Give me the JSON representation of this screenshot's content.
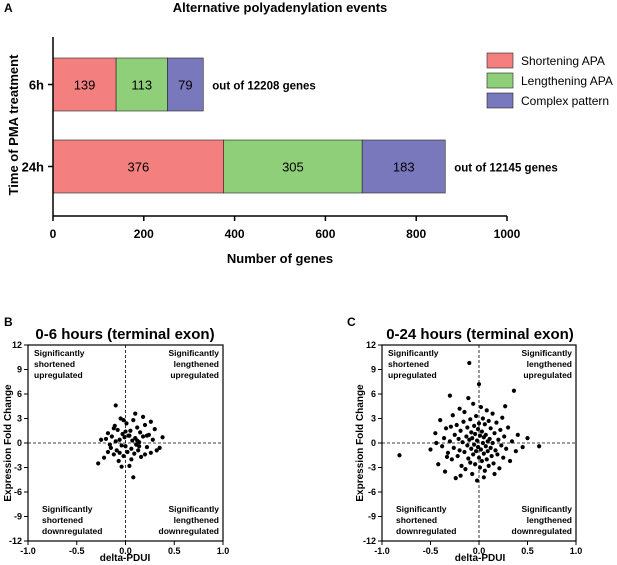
{
  "colors": {
    "shortening": "#f47f7f",
    "lengthening": "#8fcf7a",
    "complex": "#7a78bd",
    "axis": "#000000",
    "dot": "#000000"
  },
  "chart_data": [
    {
      "panel": "A",
      "type": "bar",
      "orientation": "horizontal",
      "stacked": true,
      "title": "Alternative polyadenylation events",
      "xlabel": "Number of genes",
      "ylabel": "Time of PMA treatment",
      "xlim": [
        0,
        1000
      ],
      "xticks": [
        "0",
        "200",
        "400",
        "600",
        "800",
        "1000"
      ],
      "xtick_values": [
        0,
        200,
        400,
        600,
        800,
        1000
      ],
      "categories": [
        "6h",
        "24h"
      ],
      "series": [
        {
          "name": "Shortening APA",
          "color_key": "shortening",
          "values": [
            139,
            376
          ],
          "labels": [
            "139",
            "376"
          ]
        },
        {
          "name": "Lengthening APA",
          "color_key": "lengthening",
          "values": [
            113,
            305
          ],
          "labels": [
            "113",
            "305"
          ]
        },
        {
          "name": "Complex pattern",
          "color_key": "complex",
          "values": [
            79,
            183
          ],
          "labels": [
            "79",
            "183"
          ]
        }
      ],
      "annotations": [
        "out of 12208 genes",
        "out of 12145 genes"
      ],
      "legend": "right"
    },
    {
      "panel": "B",
      "type": "scatter",
      "title": "0-6 hours (terminal exon)",
      "xlabel": "delta-PDUI",
      "ylabel": "Expression Fold Change",
      "xlim": [
        -1.0,
        1.0
      ],
      "ylim": [
        -12,
        12
      ],
      "xticks": [
        "-1.0",
        "-0.5",
        "0.0",
        "0.5",
        "1.0"
      ],
      "xtick_values": [
        -1.0,
        -0.5,
        0.0,
        0.5,
        1.0
      ],
      "yticks": [
        "12",
        "9",
        "6",
        "3",
        "0",
        "-3",
        "-6",
        "-9",
        "-12"
      ],
      "ytick_values": [
        12,
        9,
        6,
        3,
        0,
        -3,
        -6,
        -9,
        -12
      ],
      "quadrant_labels": {
        "top_left": [
          "Significantly",
          "shortened",
          "upregulated"
        ],
        "top_right": [
          "Significantly",
          "lengthened",
          "upregulated"
        ],
        "bottom_left": [
          "Significantly",
          "shortened",
          "downregulated"
        ],
        "bottom_right": [
          "Significantly",
          "lengthened",
          "downregulated"
        ]
      },
      "points": [
        [
          -0.28,
          -2.5
        ],
        [
          -0.22,
          -1.8
        ],
        [
          -0.2,
          0.5
        ],
        [
          -0.18,
          1.2
        ],
        [
          -0.15,
          -0.6
        ],
        [
          -0.14,
          0.8
        ],
        [
          -0.12,
          -1.4
        ],
        [
          -0.11,
          2.1
        ],
        [
          -0.1,
          0.2
        ],
        [
          -0.09,
          -0.9
        ],
        [
          -0.08,
          1.6
        ],
        [
          -0.07,
          -2.2
        ],
        [
          -0.06,
          0.4
        ],
        [
          -0.05,
          3.0
        ],
        [
          -0.04,
          -0.3
        ],
        [
          -0.03,
          1.1
        ],
        [
          -0.02,
          -1.6
        ],
        [
          -0.01,
          0.7
        ],
        [
          0.0,
          -0.4
        ],
        [
          0.01,
          2.4
        ],
        [
          0.02,
          -1.1
        ],
        [
          0.03,
          0.9
        ],
        [
          0.04,
          -2.8
        ],
        [
          0.05,
          1.5
        ],
        [
          0.06,
          -0.7
        ],
        [
          0.07,
          0.3
        ],
        [
          0.08,
          2.8
        ],
        [
          0.09,
          -1.3
        ],
        [
          0.1,
          0.6
        ],
        [
          0.11,
          -0.2
        ],
        [
          0.12,
          1.9
        ],
        [
          0.13,
          -0.9
        ],
        [
          0.14,
          0.1
        ],
        [
          0.15,
          1.3
        ],
        [
          0.16,
          -1.7
        ],
        [
          0.18,
          0.8
        ],
        [
          0.2,
          2.2
        ],
        [
          0.22,
          -0.5
        ],
        [
          0.24,
          1.0
        ],
        [
          0.26,
          -1.2
        ],
        [
          0.28,
          0.4
        ],
        [
          0.3,
          1.7
        ],
        [
          0.35,
          -0.6
        ],
        [
          0.38,
          0.7
        ],
        [
          -0.1,
          4.6
        ],
        [
          0.18,
          3.2
        ],
        [
          0.08,
          -4.2
        ],
        [
          -0.16,
          -0.2
        ],
        [
          0.04,
          0.9
        ],
        [
          -0.06,
          -1.2
        ],
        [
          0.12,
          0.3
        ],
        [
          -0.02,
          2.8
        ],
        [
          0.06,
          -2.0
        ],
        [
          0.2,
          -1.4
        ],
        [
          -0.12,
          1.8
        ],
        [
          0.26,
          2.6
        ],
        [
          -0.25,
          0.4
        ],
        [
          0.32,
          -0.9
        ],
        [
          -0.04,
          -2.9
        ],
        [
          0.1,
          3.6
        ],
        [
          0.0,
          1.4
        ],
        [
          0.14,
          -0.4
        ],
        [
          -0.18,
          -1.1
        ],
        [
          0.22,
          0.9
        ]
      ]
    },
    {
      "panel": "C",
      "type": "scatter",
      "title": "0-24 hours (terminal exon)",
      "xlabel": "delta-PDUI",
      "ylabel": "Expression Fold Change",
      "xlim": [
        -1.0,
        1.0
      ],
      "ylim": [
        -12,
        12
      ],
      "xticks": [
        "-1.0",
        "-0.5",
        "0.0",
        "0.5",
        "1.0"
      ],
      "xtick_values": [
        -1.0,
        -0.5,
        0.0,
        0.5,
        1.0
      ],
      "yticks": [
        "12",
        "9",
        "6",
        "3",
        "0",
        "-3",
        "-6",
        "-9",
        "-12"
      ],
      "ytick_values": [
        12,
        9,
        6,
        3,
        0,
        -3,
        -6,
        -9,
        -12
      ],
      "quadrant_labels": {
        "top_left": [
          "Significantly",
          "shortened",
          "upregulated"
        ],
        "top_right": [
          "Significantly",
          "lengthened",
          "upregulated"
        ],
        "bottom_left": [
          "Significantly",
          "shortened",
          "downregulated"
        ],
        "bottom_right": [
          "Significantly",
          "lengthened",
          "downregulated"
        ]
      },
      "points": [
        [
          -0.82,
          -1.5
        ],
        [
          -0.5,
          -0.8
        ],
        [
          -0.45,
          1.2
        ],
        [
          -0.42,
          -2.6
        ],
        [
          -0.4,
          2.8
        ],
        [
          -0.38,
          -0.4
        ],
        [
          -0.36,
          0.6
        ],
        [
          -0.35,
          -3.5
        ],
        [
          -0.34,
          1.8
        ],
        [
          -0.32,
          -1.2
        ],
        [
          -0.3,
          5.8
        ],
        [
          -0.3,
          0.2
        ],
        [
          -0.28,
          -2.0
        ],
        [
          -0.27,
          3.4
        ],
        [
          -0.26,
          -0.6
        ],
        [
          -0.25,
          1.0
        ],
        [
          -0.24,
          -4.3
        ],
        [
          -0.23,
          2.2
        ],
        [
          -0.22,
          -1.6
        ],
        [
          -0.21,
          0.5
        ],
        [
          -0.2,
          4.2
        ],
        [
          -0.2,
          -0.9
        ],
        [
          -0.19,
          1.5
        ],
        [
          -0.18,
          -2.8
        ],
        [
          -0.17,
          0.1
        ],
        [
          -0.16,
          2.6
        ],
        [
          -0.15,
          -1.1
        ],
        [
          -0.15,
          3.8
        ],
        [
          -0.14,
          -3.2
        ],
        [
          -0.13,
          0.8
        ],
        [
          -0.12,
          -0.3
        ],
        [
          -0.12,
          1.9
        ],
        [
          -0.11,
          -1.9
        ],
        [
          -0.1,
          9.8
        ],
        [
          -0.1,
          0.4
        ],
        [
          -0.09,
          -2.4
        ],
        [
          -0.09,
          2.9
        ],
        [
          -0.08,
          -0.7
        ],
        [
          -0.08,
          1.3
        ],
        [
          -0.07,
          -3.8
        ],
        [
          -0.07,
          0.6
        ],
        [
          -0.06,
          4.8
        ],
        [
          -0.06,
          -1.4
        ],
        [
          -0.05,
          2.1
        ],
        [
          -0.05,
          -0.2
        ],
        [
          -0.04,
          -2.6
        ],
        [
          -0.04,
          1.1
        ],
        [
          -0.03,
          3.3
        ],
        [
          -0.03,
          -1.0
        ],
        [
          -0.02,
          0.3
        ],
        [
          -0.02,
          -4.6
        ],
        [
          -0.01,
          1.7
        ],
        [
          -0.01,
          -0.5
        ],
        [
          0.0,
          7.2
        ],
        [
          0.0,
          2.4
        ],
        [
          0.0,
          -1.8
        ],
        [
          0.01,
          0.9
        ],
        [
          0.01,
          -3.0
        ],
        [
          0.02,
          4.4
        ],
        [
          0.02,
          -0.8
        ],
        [
          0.03,
          1.4
        ],
        [
          0.03,
          -2.2
        ],
        [
          0.04,
          0.0
        ],
        [
          0.04,
          3.0
        ],
        [
          0.05,
          -1.3
        ],
        [
          0.05,
          0.7
        ],
        [
          0.06,
          -3.4
        ],
        [
          0.06,
          2.3
        ],
        [
          0.07,
          -0.4
        ],
        [
          0.07,
          1.0
        ],
        [
          0.08,
          -2.0
        ],
        [
          0.08,
          4.0
        ],
        [
          0.09,
          0.2
        ],
        [
          0.09,
          -1.0
        ],
        [
          0.1,
          2.7
        ],
        [
          0.1,
          -2.8
        ],
        [
          0.11,
          0.5
        ],
        [
          0.12,
          -0.6
        ],
        [
          0.12,
          1.8
        ],
        [
          0.13,
          -1.6
        ],
        [
          0.14,
          3.6
        ],
        [
          0.14,
          0.0
        ],
        [
          0.15,
          -2.5
        ],
        [
          0.16,
          1.2
        ],
        [
          0.17,
          -0.9
        ],
        [
          0.18,
          2.5
        ],
        [
          0.19,
          -1.4
        ],
        [
          0.2,
          0.4
        ],
        [
          0.21,
          -3.1
        ],
        [
          0.22,
          1.6
        ],
        [
          0.23,
          -0.3
        ],
        [
          0.24,
          3.1
        ],
        [
          0.25,
          -1.8
        ],
        [
          0.26,
          0.8
        ],
        [
          0.28,
          -0.7
        ],
        [
          0.3,
          1.9
        ],
        [
          0.32,
          -2.2
        ],
        [
          0.34,
          0.2
        ],
        [
          0.36,
          6.4
        ],
        [
          0.38,
          -1.0
        ],
        [
          0.4,
          1.0
        ],
        [
          0.45,
          -0.5
        ],
        [
          0.5,
          0.6
        ],
        [
          0.62,
          -0.4
        ],
        [
          -0.44,
          0.0
        ],
        [
          -0.33,
          -1.7
        ],
        [
          -0.29,
          2.0
        ],
        [
          -0.11,
          5.5
        ],
        [
          0.27,
          4.5
        ],
        [
          -0.19,
          -4.0
        ],
        [
          0.05,
          -4.2
        ],
        [
          0.16,
          -3.8
        ]
      ]
    }
  ]
}
